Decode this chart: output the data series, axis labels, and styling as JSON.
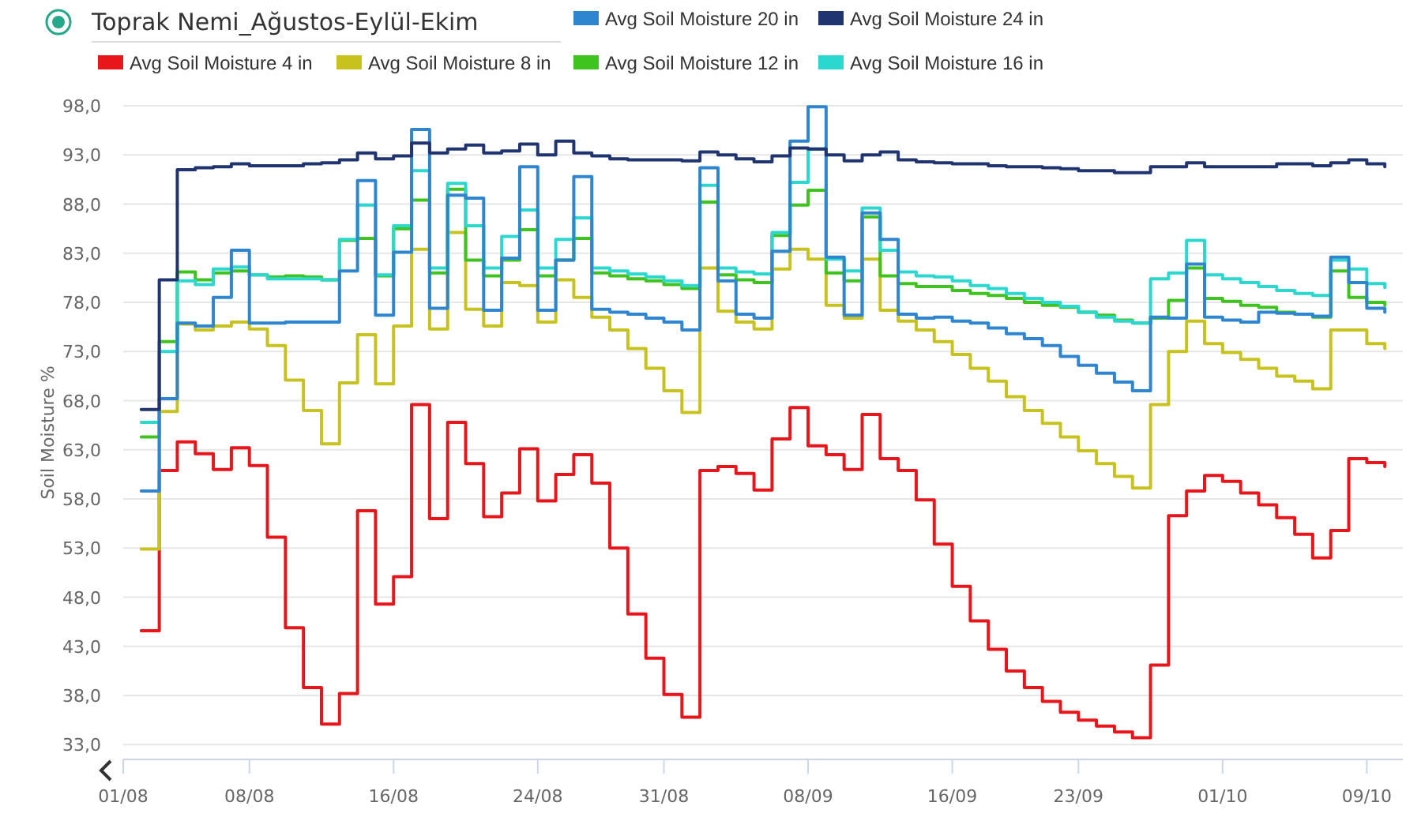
{
  "chart_data": {
    "type": "step",
    "title": "Toprak Nemi_Ağustos-Eylül-Ekim",
    "ylabel": "Soil Moisture %",
    "legend": "top",
    "grid": "y",
    "line_style": "solid",
    "marker": "none",
    "xlim": [
      "--08-01",
      "--10-11"
    ],
    "xticks": [
      {
        "value": "--08-01",
        "label": "01/08"
      },
      {
        "value": "--08-08",
        "label": "08/08"
      },
      {
        "value": "--08-16",
        "label": "16/08"
      },
      {
        "value": "--08-24",
        "label": "24/08"
      },
      {
        "value": "--08-31",
        "label": "31/08"
      },
      {
        "value": "--09-08",
        "label": "08/09"
      },
      {
        "value": "--09-16",
        "label": "16/09"
      },
      {
        "value": "--09-23",
        "label": "23/09"
      },
      {
        "value": "--10-01",
        "label": "01/10"
      },
      {
        "value": "--10-09",
        "label": "09/10"
      }
    ],
    "ylim": [
      31.5,
      98
    ],
    "yticks": [
      {
        "value": 33,
        "label": "33,0"
      },
      {
        "value": 38,
        "label": "38,0"
      },
      {
        "value": 43,
        "label": "43,0"
      },
      {
        "value": 48,
        "label": "48,0"
      },
      {
        "value": 53,
        "label": "53,0"
      },
      {
        "value": 58,
        "label": "58,0"
      },
      {
        "value": 63,
        "label": "63,0"
      },
      {
        "value": 68,
        "label": "68,0"
      },
      {
        "value": 73,
        "label": "73,0"
      },
      {
        "value": 78,
        "label": "78,0"
      },
      {
        "value": 83,
        "label": "83,0"
      },
      {
        "value": 88,
        "label": "88,0"
      },
      {
        "value": 93,
        "label": "93,0"
      },
      {
        "value": 98,
        "label": "98,0"
      }
    ],
    "x": [
      "--08-02",
      "--08-03",
      "--08-04",
      "--08-05",
      "--08-06",
      "--08-07",
      "--08-08",
      "--08-09",
      "--08-10",
      "--08-11",
      "--08-12",
      "--08-13",
      "--08-14",
      "--08-15",
      "--08-16",
      "--08-17",
      "--08-18",
      "--08-19",
      "--08-20",
      "--08-21",
      "--08-22",
      "--08-23",
      "--08-24",
      "--08-25",
      "--08-26",
      "--08-27",
      "--08-28",
      "--08-29",
      "--08-30",
      "--08-31",
      "--09-01",
      "--09-02",
      "--09-03",
      "--09-04",
      "--09-05",
      "--09-06",
      "--09-07",
      "--09-08",
      "--09-09",
      "--09-10",
      "--09-11",
      "--09-12",
      "--09-13",
      "--09-14",
      "--09-15",
      "--09-16",
      "--09-17",
      "--09-18",
      "--09-19",
      "--09-20",
      "--09-21",
      "--09-22",
      "--09-23",
      "--09-24",
      "--09-25",
      "--09-26",
      "--09-27",
      "--09-28",
      "--09-29",
      "--09-30",
      "--10-01",
      "--10-02",
      "--10-03",
      "--10-04",
      "--10-05",
      "--10-06",
      "--10-07",
      "--10-08",
      "--10-09",
      "--10-10"
    ],
    "series": [
      {
        "name": "Avg Soil Moisture 4 in",
        "color": "#e8151b",
        "values": [
          44.6,
          60.9,
          63.8,
          62.6,
          61.0,
          63.2,
          61.4,
          54.1,
          44.9,
          38.8,
          35.1,
          38.2,
          56.8,
          47.3,
          50.1,
          67.6,
          56.0,
          65.8,
          61.6,
          56.2,
          58.6,
          63.1,
          57.8,
          60.5,
          62.5,
          59.6,
          53.0,
          46.3,
          41.8,
          38.1,
          35.8,
          60.9,
          61.3,
          60.6,
          58.9,
          64.1,
          67.3,
          63.4,
          62.5,
          61.0,
          66.6,
          62.1,
          60.9,
          57.9,
          53.4,
          49.1,
          45.6,
          42.7,
          40.5,
          38.8,
          37.4,
          36.3,
          35.5,
          34.9,
          34.3,
          33.7,
          41.1,
          56.3,
          58.8,
          60.4,
          59.8,
          58.6,
          57.4,
          56.1,
          54.4,
          52.0,
          54.8,
          62.1,
          61.7,
          61.3
        ]
      },
      {
        "name": "Avg Soil Moisture 8 in",
        "color": "#c8c21e",
        "values": [
          52.9,
          66.9,
          75.8,
          75.2,
          75.6,
          76.0,
          75.3,
          73.6,
          70.1,
          67.0,
          63.6,
          69.8,
          74.7,
          69.7,
          75.6,
          83.4,
          75.3,
          85.1,
          77.3,
          75.6,
          80.0,
          79.7,
          76.0,
          80.3,
          78.5,
          76.5,
          75.2,
          73.3,
          71.3,
          69.0,
          66.8,
          81.5,
          77.1,
          76.0,
          75.3,
          81.4,
          83.4,
          82.4,
          77.7,
          76.4,
          82.4,
          77.2,
          76.1,
          75.2,
          74.0,
          72.7,
          71.3,
          70.0,
          68.4,
          67.0,
          65.7,
          64.3,
          62.9,
          61.6,
          60.3,
          59.1,
          67.6,
          73.0,
          76.1,
          73.8,
          72.9,
          72.2,
          71.3,
          70.5,
          70.0,
          69.2,
          75.2,
          75.2,
          73.8,
          73.3
        ]
      },
      {
        "name": "Avg Soil Moisture 12 in",
        "color": "#3fc31e",
        "values": [
          64.3,
          74.0,
          81.1,
          80.3,
          81.0,
          81.2,
          80.8,
          80.6,
          80.7,
          80.6,
          80.3,
          84.3,
          84.5,
          80.7,
          85.5,
          88.4,
          81.0,
          89.5,
          82.3,
          80.7,
          82.3,
          85.4,
          80.7,
          82.3,
          84.5,
          81.0,
          80.7,
          80.4,
          80.2,
          79.8,
          79.4,
          88.2,
          80.8,
          80.3,
          80.0,
          84.8,
          87.9,
          89.4,
          81.0,
          80.2,
          86.7,
          80.7,
          79.9,
          79.6,
          79.6,
          79.2,
          78.9,
          78.7,
          78.4,
          78.0,
          77.7,
          77.5,
          77.0,
          76.7,
          76.2,
          75.9,
          76.4,
          78.2,
          81.5,
          78.4,
          78.1,
          77.7,
          77.5,
          77.0,
          76.8,
          76.5,
          81.2,
          78.5,
          78.0,
          77.7
        ]
      },
      {
        "name": "Avg Soil Moisture 16 in",
        "color": "#2ad8d0",
        "values": [
          65.8,
          73.0,
          80.2,
          79.8,
          81.4,
          81.6,
          80.8,
          80.4,
          80.4,
          80.4,
          80.3,
          84.4,
          87.9,
          80.8,
          85.8,
          91.4,
          81.5,
          90.1,
          85.8,
          81.5,
          84.7,
          87.4,
          81.5,
          84.4,
          86.6,
          81.5,
          81.2,
          80.9,
          80.6,
          80.2,
          79.7,
          89.9,
          81.5,
          81.1,
          80.9,
          85.1,
          90.2,
          93.6,
          82.4,
          81.2,
          87.6,
          83.3,
          81.1,
          80.7,
          80.6,
          80.2,
          79.7,
          79.4,
          78.9,
          78.4,
          78.0,
          77.6,
          77.0,
          76.5,
          76.1,
          75.9,
          80.4,
          81.0,
          84.3,
          80.8,
          80.4,
          80.0,
          79.6,
          79.2,
          78.9,
          78.7,
          82.3,
          81.4,
          79.9,
          79.5
        ]
      },
      {
        "name": "Avg Soil Moisture 20 in",
        "color": "#2f86d0",
        "values": [
          58.8,
          68.2,
          75.9,
          75.6,
          78.5,
          83.3,
          75.9,
          75.9,
          76.0,
          76.0,
          76.0,
          81.2,
          90.4,
          76.7,
          83.1,
          95.6,
          77.4,
          88.9,
          88.6,
          77.2,
          82.5,
          91.8,
          77.2,
          82.3,
          90.8,
          77.3,
          77.0,
          76.8,
          76.4,
          76.0,
          75.2,
          91.7,
          80.2,
          76.8,
          76.4,
          83.2,
          94.4,
          97.9,
          82.6,
          76.7,
          87.1,
          84.4,
          76.8,
          76.4,
          76.5,
          76.1,
          75.9,
          75.4,
          74.8,
          74.3,
          73.6,
          72.5,
          71.6,
          70.8,
          69.9,
          69.0,
          76.5,
          76.4,
          81.9,
          76.5,
          76.2,
          76.0,
          77.0,
          76.9,
          76.8,
          76.6,
          82.6,
          80.0,
          77.4,
          77.0
        ]
      },
      {
        "name": "Avg Soil Moisture 24 in",
        "color": "#1f3470",
        "values": [
          67.1,
          80.3,
          91.5,
          91.7,
          91.8,
          92.1,
          91.9,
          91.9,
          91.9,
          92.1,
          92.2,
          92.5,
          93.2,
          92.6,
          92.9,
          94.2,
          93.2,
          93.6,
          94.0,
          93.2,
          93.4,
          94.1,
          93.0,
          94.4,
          93.2,
          92.9,
          92.6,
          92.5,
          92.5,
          92.5,
          92.4,
          93.3,
          93.0,
          92.6,
          92.3,
          92.9,
          93.7,
          93.6,
          93.0,
          92.4,
          93.0,
          93.3,
          92.5,
          92.3,
          92.2,
          92.1,
          92.1,
          91.9,
          91.8,
          91.8,
          91.7,
          91.6,
          91.4,
          91.4,
          91.2,
          91.2,
          91.8,
          91.8,
          92.2,
          91.8,
          91.8,
          91.8,
          91.8,
          92.1,
          92.1,
          91.9,
          92.2,
          92.5,
          92.1,
          91.8
        ]
      }
    ]
  }
}
